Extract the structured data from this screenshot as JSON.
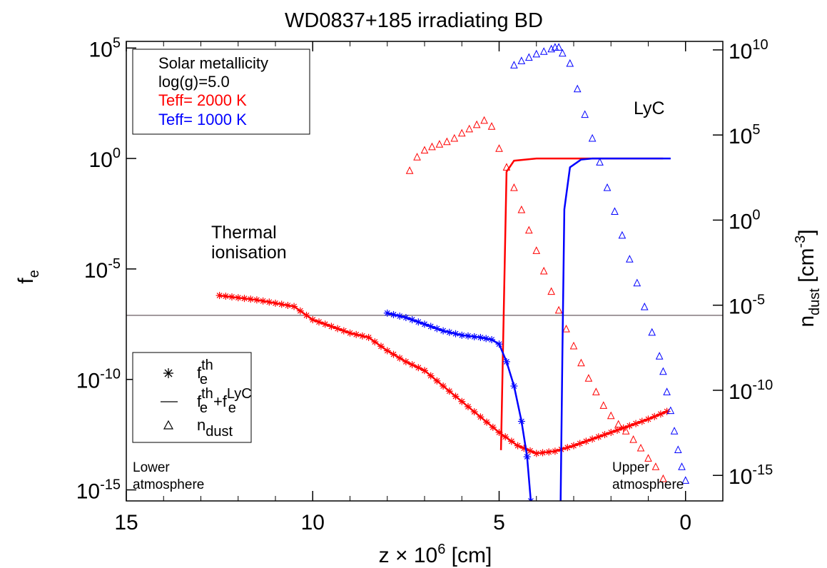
{
  "chart_data": {
    "type": "line",
    "title": "WD0837+185 irradiating BD",
    "x_axis": {
      "label_prefix": "z × 10",
      "label_exp": "6",
      "label_suffix": " [cm]",
      "range": [
        15,
        -1
      ],
      "ticks": [
        15,
        10,
        5,
        0
      ],
      "reversed": true
    },
    "y_left": {
      "label_base": "f",
      "label_sub": "e",
      "scale": "log",
      "range_log10": [
        -15.5,
        5.3
      ],
      "ticks": [
        {
          "v": 5,
          "base": "10",
          "exp": "5"
        },
        {
          "v": 0,
          "base": "10",
          "exp": "0"
        },
        {
          "v": -5,
          "base": "10",
          "exp": "-5"
        },
        {
          "v": -10,
          "base": "10",
          "exp": "-10"
        },
        {
          "v": -15,
          "base": "10",
          "exp": "-15"
        }
      ]
    },
    "y_right": {
      "label_base": "n",
      "label_sub": "dust",
      "label_unit_pre": " [cm",
      "label_unit_exp": "-3",
      "label_unit_post": "]",
      "scale": "log",
      "range_log10": [
        -16.5,
        10.5
      ],
      "ticks": [
        {
          "v": 10,
          "base": "10",
          "exp": "10"
        },
        {
          "v": 5,
          "base": "10",
          "exp": "5"
        },
        {
          "v": 0,
          "base": "10",
          "exp": "0"
        },
        {
          "v": -5,
          "base": "10",
          "exp": "-5"
        },
        {
          "v": -10,
          "base": "10",
          "exp": "-10"
        },
        {
          "v": -15,
          "base": "10",
          "exp": "-15"
        }
      ]
    },
    "reference_line_log10_fe": -7.1,
    "info_box": {
      "line1": "Solar metallicity",
      "line2": "log(g)=5.0",
      "line3": "Teff= 2000 K",
      "line4": "Teff= 1000 K"
    },
    "legend": {
      "item1_base": "f",
      "item1_sub": "e",
      "item1_sup": "th",
      "item2_base1": "f",
      "item2_sub1": "e",
      "item2_sup1": "th",
      "item2_plus": "+",
      "item2_base2": "f",
      "item2_sub2": "e",
      "item2_sup2": "LyC",
      "item3_base": "n",
      "item3_sub": "dust"
    },
    "annotations": {
      "thermal1": "Thermal",
      "thermal2": "ionisation",
      "lyc": "LyC",
      "lower1": "Lower",
      "lower2": "atmosphere",
      "upper1": "Upper",
      "upper2": "atmosphere"
    },
    "colors": {
      "teff2000": "#ff0000",
      "teff1000": "#0000ff",
      "reference": "#5a4a50"
    },
    "series": [
      {
        "name": "Teff= 2000 K",
        "color": "#ff0000",
        "fe_th": [
          [
            12.5,
            -6.2
          ],
          [
            12.0,
            -6.3
          ],
          [
            11.5,
            -6.4
          ],
          [
            11.0,
            -6.55
          ],
          [
            10.5,
            -6.7
          ],
          [
            10.0,
            -7.3
          ],
          [
            9.5,
            -7.6
          ],
          [
            9.0,
            -7.9
          ],
          [
            8.5,
            -8.1
          ],
          [
            8.0,
            -8.7
          ],
          [
            7.5,
            -9.2
          ],
          [
            7.0,
            -9.6
          ],
          [
            6.5,
            -10.3
          ],
          [
            6.0,
            -11.0
          ],
          [
            5.5,
            -11.7
          ],
          [
            5.0,
            -12.4
          ],
          [
            4.5,
            -13.0
          ],
          [
            4.0,
            -13.35
          ],
          [
            3.5,
            -13.25
          ],
          [
            3.0,
            -13.0
          ],
          [
            2.5,
            -12.7
          ],
          [
            2.0,
            -12.4
          ],
          [
            1.5,
            -12.1
          ],
          [
            1.0,
            -11.8
          ],
          [
            0.5,
            -11.45
          ]
        ],
        "fe_total": [
          [
            4.95,
            -13.2
          ],
          [
            4.8,
            -0.6
          ],
          [
            4.6,
            -0.1
          ],
          [
            4.0,
            0.0
          ],
          [
            3.0,
            0.0
          ],
          [
            2.0,
            0.0
          ],
          [
            1.0,
            0.0
          ],
          [
            0.6,
            0.0
          ]
        ],
        "n_dust": [
          [
            7.4,
            2.9
          ],
          [
            7.2,
            3.7
          ],
          [
            7.0,
            4.1
          ],
          [
            6.8,
            4.3
          ],
          [
            6.6,
            4.45
          ],
          [
            6.4,
            4.6
          ],
          [
            6.2,
            4.8
          ],
          [
            6.0,
            5.1
          ],
          [
            5.8,
            5.35
          ],
          [
            5.6,
            5.6
          ],
          [
            5.4,
            5.85
          ],
          [
            5.2,
            5.5
          ],
          [
            5.0,
            4.2
          ],
          [
            4.8,
            3.1
          ],
          [
            4.6,
            1.9
          ],
          [
            4.4,
            0.6
          ],
          [
            4.2,
            -0.6
          ],
          [
            4.0,
            -1.8
          ],
          [
            3.8,
            -3.0
          ],
          [
            3.6,
            -4.2
          ],
          [
            3.4,
            -5.3
          ],
          [
            3.2,
            -6.4
          ],
          [
            3.0,
            -7.4
          ],
          [
            2.8,
            -8.4
          ],
          [
            2.6,
            -9.3
          ],
          [
            2.4,
            -10.1
          ],
          [
            2.2,
            -10.9
          ],
          [
            2.0,
            -11.5
          ],
          [
            1.8,
            -12.0
          ],
          [
            1.6,
            -12.4
          ],
          [
            1.4,
            -12.9
          ],
          [
            1.2,
            -13.4
          ],
          [
            1.0,
            -14.0
          ],
          [
            0.8,
            -14.5
          ],
          [
            0.6,
            -15.2
          ]
        ]
      },
      {
        "name": "Teff= 1000 K",
        "color": "#0000ff",
        "fe_th": [
          [
            8.0,
            -7.0
          ],
          [
            7.5,
            -7.2
          ],
          [
            7.0,
            -7.5
          ],
          [
            6.5,
            -7.8
          ],
          [
            6.0,
            -8.0
          ],
          [
            5.5,
            -8.1
          ],
          [
            5.2,
            -8.2
          ],
          [
            5.0,
            -8.4
          ],
          [
            4.8,
            -9.2
          ],
          [
            4.6,
            -10.3
          ],
          [
            4.4,
            -11.9
          ],
          [
            4.25,
            -13.5
          ],
          [
            4.15,
            -15.5
          ]
        ],
        "fe_total": [
          [
            3.35,
            -15.5
          ],
          [
            3.3,
            -8.5
          ],
          [
            3.25,
            -2.3
          ],
          [
            3.1,
            -0.4
          ],
          [
            2.8,
            -0.05
          ],
          [
            2.5,
            0.0
          ],
          [
            1.5,
            0.0
          ],
          [
            0.4,
            0.0
          ]
        ],
        "n_dust": [
          [
            4.6,
            9.1
          ],
          [
            4.4,
            9.35
          ],
          [
            4.2,
            9.55
          ],
          [
            4.0,
            9.75
          ],
          [
            3.8,
            9.9
          ],
          [
            3.6,
            10.05
          ],
          [
            3.5,
            10.15
          ],
          [
            3.4,
            10.15
          ],
          [
            3.3,
            9.8
          ],
          [
            3.1,
            9.2
          ],
          [
            2.9,
            7.7
          ],
          [
            2.7,
            6.2
          ],
          [
            2.5,
            4.8
          ],
          [
            2.3,
            3.4
          ],
          [
            2.1,
            1.9
          ],
          [
            1.9,
            0.5
          ],
          [
            1.7,
            -0.9
          ],
          [
            1.5,
            -2.3
          ],
          [
            1.3,
            -3.7
          ],
          [
            1.1,
            -5.1
          ],
          [
            0.9,
            -6.6
          ],
          [
            0.7,
            -8.0
          ],
          [
            0.6,
            -8.9
          ],
          [
            0.5,
            -10.1
          ],
          [
            0.4,
            -11.2
          ],
          [
            0.3,
            -12.4
          ],
          [
            0.2,
            -13.5
          ],
          [
            0.1,
            -14.5
          ],
          [
            0.0,
            -15.3
          ]
        ]
      }
    ]
  }
}
